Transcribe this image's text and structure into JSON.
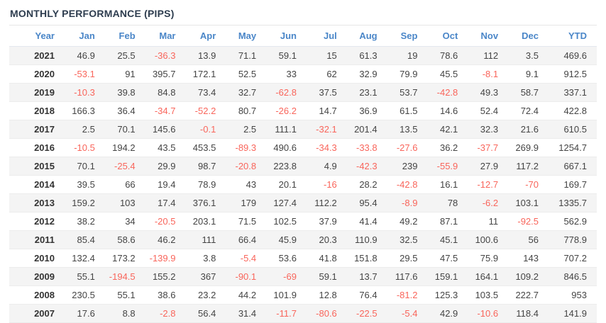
{
  "title": "MONTHLY PERFORMANCE (PIPS)",
  "table": {
    "columns": [
      "Year",
      "Jan",
      "Feb",
      "Mar",
      "Apr",
      "May",
      "Jun",
      "Jul",
      "Aug",
      "Sep",
      "Oct",
      "Nov",
      "Dec",
      "YTD"
    ],
    "rows": [
      {
        "year": "2021",
        "values": [
          "46.9",
          "25.5",
          "-36.3",
          "13.9",
          "71.1",
          "59.1",
          "15",
          "61.3",
          "19",
          "78.6",
          "112",
          "3.5",
          "469.6"
        ]
      },
      {
        "year": "2020",
        "values": [
          "-53.1",
          "91",
          "395.7",
          "172.1",
          "52.5",
          "33",
          "62",
          "32.9",
          "79.9",
          "45.5",
          "-8.1",
          "9.1",
          "912.5"
        ]
      },
      {
        "year": "2019",
        "values": [
          "-10.3",
          "39.8",
          "84.8",
          "73.4",
          "32.7",
          "-62.8",
          "37.5",
          "23.1",
          "53.7",
          "-42.8",
          "49.3",
          "58.7",
          "337.1"
        ]
      },
      {
        "year": "2018",
        "values": [
          "166.3",
          "36.4",
          "-34.7",
          "-52.2",
          "80.7",
          "-26.2",
          "14.7",
          "36.9",
          "61.5",
          "14.6",
          "52.4",
          "72.4",
          "422.8"
        ]
      },
      {
        "year": "2017",
        "values": [
          "2.5",
          "70.1",
          "145.6",
          "-0.1",
          "2.5",
          "111.1",
          "-32.1",
          "201.4",
          "13.5",
          "42.1",
          "32.3",
          "21.6",
          "610.5"
        ]
      },
      {
        "year": "2016",
        "values": [
          "-10.5",
          "194.2",
          "43.5",
          "453.5",
          "-89.3",
          "490.6",
          "-34.3",
          "-33.8",
          "-27.6",
          "36.2",
          "-37.7",
          "269.9",
          "1254.7"
        ]
      },
      {
        "year": "2015",
        "values": [
          "70.1",
          "-25.4",
          "29.9",
          "98.7",
          "-20.8",
          "223.8",
          "4.9",
          "-42.3",
          "239",
          "-55.9",
          "27.9",
          "117.2",
          "667.1"
        ]
      },
      {
        "year": "2014",
        "values": [
          "39.5",
          "66",
          "19.4",
          "78.9",
          "43",
          "20.1",
          "-16",
          "28.2",
          "-42.8",
          "16.1",
          "-12.7",
          "-70",
          "169.7"
        ]
      },
      {
        "year": "2013",
        "values": [
          "159.2",
          "103",
          "17.4",
          "376.1",
          "179",
          "127.4",
          "112.2",
          "95.4",
          "-8.9",
          "78",
          "-6.2",
          "103.1",
          "1335.7"
        ]
      },
      {
        "year": "2012",
        "values": [
          "38.2",
          "34",
          "-20.5",
          "203.1",
          "71.5",
          "102.5",
          "37.9",
          "41.4",
          "49.2",
          "87.1",
          "11",
          "-92.5",
          "562.9"
        ]
      },
      {
        "year": "2011",
        "values": [
          "85.4",
          "58.6",
          "46.2",
          "111",
          "66.4",
          "45.9",
          "20.3",
          "110.9",
          "32.5",
          "45.1",
          "100.6",
          "56",
          "778.9"
        ]
      },
      {
        "year": "2010",
        "values": [
          "132.4",
          "173.2",
          "-139.9",
          "3.8",
          "-5.4",
          "53.6",
          "41.8",
          "151.8",
          "29.5",
          "47.5",
          "75.9",
          "143",
          "707.2"
        ]
      },
      {
        "year": "2009",
        "values": [
          "55.1",
          "-194.5",
          "155.2",
          "367",
          "-90.1",
          "-69",
          "59.1",
          "13.7",
          "117.6",
          "159.1",
          "164.1",
          "109.2",
          "846.5"
        ]
      },
      {
        "year": "2008",
        "values": [
          "230.5",
          "55.1",
          "38.6",
          "23.2",
          "44.2",
          "101.9",
          "12.8",
          "76.4",
          "-81.2",
          "125.3",
          "103.5",
          "222.7",
          "953"
        ]
      },
      {
        "year": "2007",
        "values": [
          "17.6",
          "8.8",
          "-2.8",
          "56.4",
          "31.4",
          "-11.7",
          "-80.6",
          "-22.5",
          "-5.4",
          "42.9",
          "-10.6",
          "118.4",
          "141.9"
        ]
      }
    ]
  },
  "colors": {
    "title": "#2e3d4f",
    "header_text": "#4a86c8",
    "positive_value": "#444444",
    "negative_value": "#f9655b",
    "row_stripe": "#f4f4f4"
  }
}
